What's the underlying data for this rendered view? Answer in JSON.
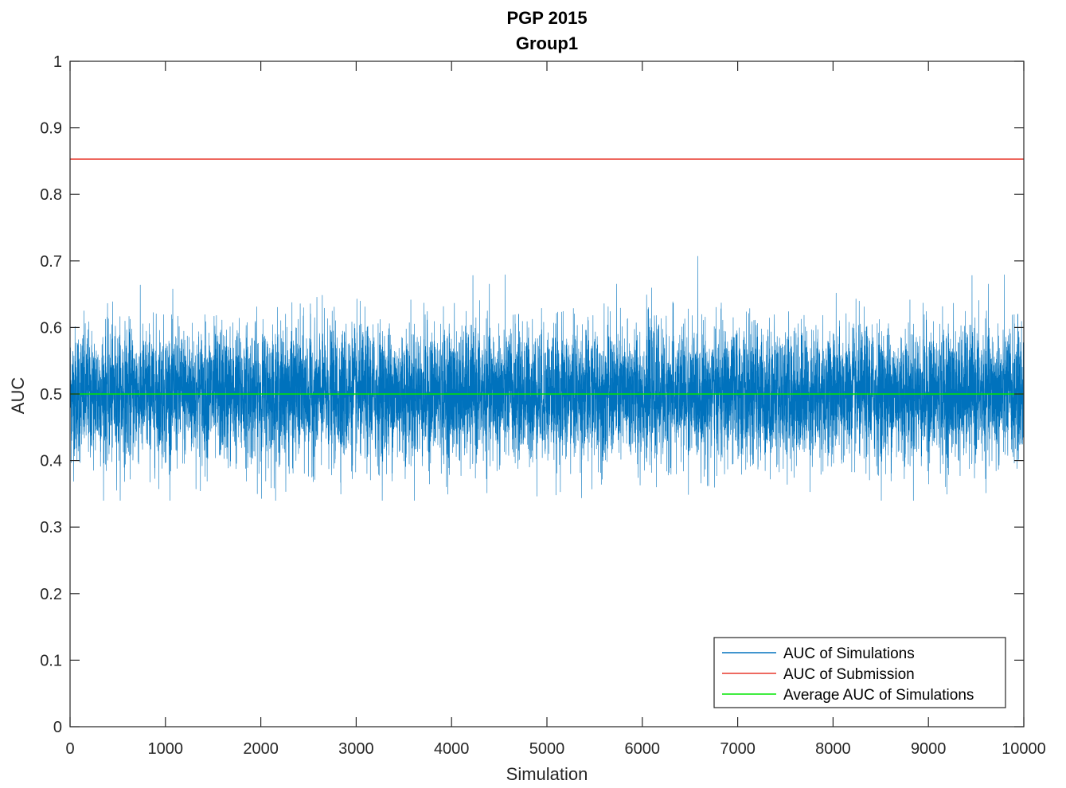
{
  "chart_data": {
    "type": "line",
    "title": "PGP 2015",
    "subtitle": "Group1",
    "xlabel": "Simulation",
    "ylabel": "AUC",
    "xlim": [
      0,
      10000
    ],
    "ylim": [
      0,
      1
    ],
    "xticks": [
      0,
      1000,
      2000,
      3000,
      4000,
      5000,
      6000,
      7000,
      8000,
      9000,
      10000
    ],
    "xtick_labels": [
      "0",
      "1000",
      "2000",
      "3000",
      "4000",
      "5000",
      "6000",
      "7000",
      "8000",
      "9000",
      "10000"
    ],
    "yticks": [
      0,
      0.1,
      0.2,
      0.3,
      0.4,
      0.5,
      0.6,
      0.7,
      0.8,
      0.9,
      1
    ],
    "ytick_labels": [
      "0",
      "0.1",
      "0.2",
      "0.3",
      "0.4",
      "0.5",
      "0.6",
      "0.7",
      "0.8",
      "0.9",
      "1"
    ],
    "grid": false,
    "legend_position": "bottom-right",
    "series": [
      {
        "name": "AUC of Simulations",
        "color": "#0072BD",
        "n_points": 10000,
        "mean": 0.5,
        "min": 0.34,
        "max": 0.707,
        "typical_range": [
          0.42,
          0.58
        ]
      },
      {
        "name": "AUC of Submission",
        "color": "#E8392D",
        "x": [
          0,
          10000
        ],
        "y": [
          0.853,
          0.853
        ]
      },
      {
        "name": "Average AUC of Simulations",
        "color": "#00E600",
        "x": [
          0,
          10000
        ],
        "y": [
          0.5,
          0.5
        ]
      }
    ]
  }
}
